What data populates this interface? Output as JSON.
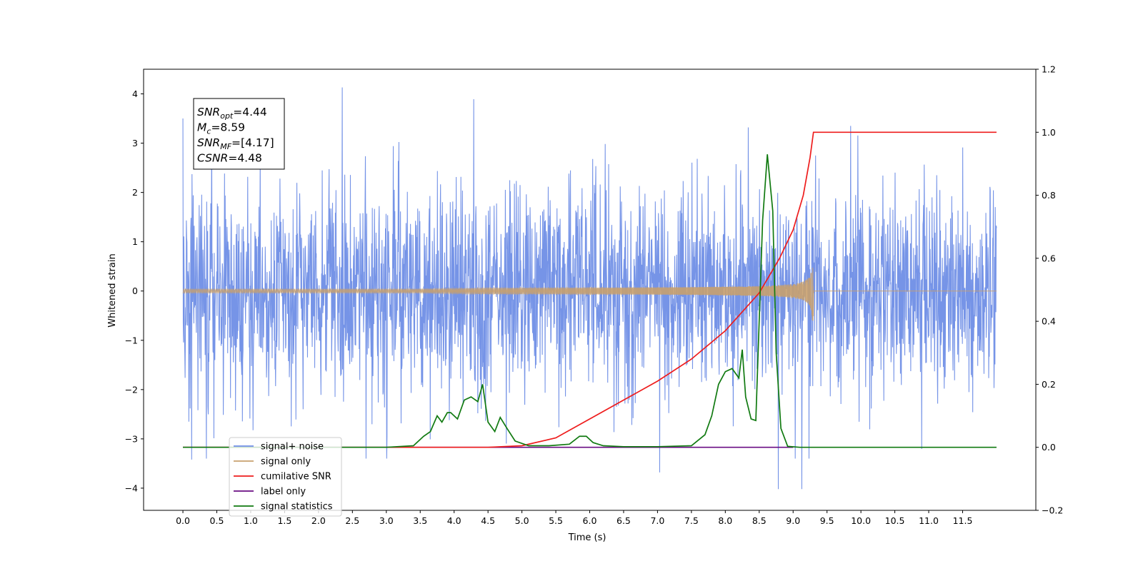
{
  "chart_data": {
    "type": "line",
    "title": "",
    "xlabel": "Time (s)",
    "ylabel": "Whitened strain",
    "y2label": "",
    "xlim": [
      -0.58,
      12.58
    ],
    "ylim": [
      -4.45,
      4.5
    ],
    "y2lim": [
      -0.2,
      1.2
    ],
    "xticks": [
      0.0,
      0.5,
      1.0,
      1.5,
      2.0,
      2.5,
      3.0,
      3.5,
      4.0,
      4.5,
      5.0,
      5.5,
      6.0,
      6.5,
      7.0,
      7.5,
      8.0,
      8.5,
      9.0,
      9.5,
      10.0,
      10.5,
      11.0,
      11.5
    ],
    "xtick_labels": [
      "0.0",
      "0.5",
      "1.0",
      "1.5",
      "2.0",
      "2.5",
      "3.0",
      "3.5",
      "4.0",
      "4.5",
      "5.0",
      "5.5",
      "6.0",
      "6.5",
      "7.0",
      "7.5",
      "8.0",
      "8.5",
      "9.0",
      "9.5",
      "10.0",
      "10.5",
      "11.0",
      "11.5"
    ],
    "yticks": [
      -4,
      -3,
      -2,
      -1,
      0,
      1,
      2,
      3,
      4
    ],
    "ytick_labels": [
      "−4",
      "−3",
      "−2",
      "−1",
      "0",
      "1",
      "2",
      "3",
      "4"
    ],
    "y2ticks": [
      -0.2,
      0.0,
      0.2,
      0.4,
      0.6,
      0.8,
      1.0,
      1.2
    ],
    "y2tick_labels": [
      "−0.2",
      "0.0",
      "0.2",
      "0.4",
      "0.6",
      "0.8",
      "1.0",
      "1.2"
    ],
    "grid": false,
    "legend_position": "lower-left",
    "annotation": {
      "lines": [
        {
          "sym": "SNR",
          "sub": "opt",
          "val": "=4.44"
        },
        {
          "sym": "M",
          "sub": "c",
          "val": "=8.59"
        },
        {
          "sym": "SNR",
          "sub": "MF",
          "val": "=[4.17]"
        },
        {
          "sym": "CSNR",
          "sub": "",
          "val": "=4.48"
        }
      ]
    },
    "series": [
      {
        "name": "signal+ noise",
        "color": "#6f8ee6",
        "axis": "left",
        "kind": "noise",
        "x_range": [
          0.0,
          12.0
        ],
        "envelope": [
          -3.4,
          4.13
        ],
        "note_points": [
          [
            0.0,
            3.5
          ],
          [
            0.13,
            -3.42
          ],
          [
            2.35,
            4.13
          ],
          [
            2.7,
            -3.4
          ],
          [
            8.78,
            -4.02
          ],
          [
            9.13,
            -4.02
          ],
          [
            9.85,
            3.35
          ],
          [
            7.03,
            -3.68
          ]
        ]
      },
      {
        "name": "signal only",
        "color": "#c8a06e",
        "axis": "left",
        "kind": "chirp",
        "x_range": [
          0.0,
          12.0
        ],
        "merger_time": 9.3,
        "peak_amplitude": 0.75
      },
      {
        "name": "cumilative SNR",
        "color": "#ee1c1c",
        "axis": "right",
        "x": [
          0.0,
          4.0,
          4.5,
          5.0,
          5.5,
          6.0,
          6.5,
          7.0,
          7.5,
          8.0,
          8.5,
          8.8,
          9.0,
          9.15,
          9.25,
          9.3,
          12.0
        ],
        "values": [
          0.0,
          0.0,
          0.0,
          0.005,
          0.03,
          0.09,
          0.15,
          0.21,
          0.28,
          0.37,
          0.49,
          0.6,
          0.69,
          0.8,
          0.92,
          1.0,
          1.0
        ]
      },
      {
        "name": "label only",
        "color": "#6a0d83",
        "axis": "right",
        "x": [
          0.0,
          9.0
        ],
        "values": [
          0.0,
          0.0
        ]
      },
      {
        "name": "signal statistics",
        "color": "#117a11",
        "axis": "right",
        "x": [
          0.0,
          3.0,
          3.4,
          3.55,
          3.65,
          3.75,
          3.82,
          3.9,
          3.95,
          4.05,
          4.15,
          4.25,
          4.35,
          4.42,
          4.5,
          4.6,
          4.68,
          4.78,
          4.9,
          5.1,
          5.4,
          5.7,
          5.85,
          5.95,
          6.05,
          6.2,
          6.5,
          7.0,
          7.5,
          7.7,
          7.8,
          7.9,
          8.0,
          8.1,
          8.2,
          8.25,
          8.3,
          8.38,
          8.45,
          8.55,
          8.62,
          8.7,
          8.75,
          8.82,
          8.92,
          9.1,
          12.0
        ],
        "values": [
          0.0,
          0.0,
          0.005,
          0.035,
          0.05,
          0.1,
          0.08,
          0.11,
          0.11,
          0.09,
          0.15,
          0.16,
          0.145,
          0.2,
          0.08,
          0.05,
          0.095,
          0.06,
          0.02,
          0.005,
          0.005,
          0.01,
          0.035,
          0.035,
          0.015,
          0.005,
          0.002,
          0.002,
          0.005,
          0.04,
          0.1,
          0.2,
          0.24,
          0.25,
          0.22,
          0.31,
          0.16,
          0.09,
          0.085,
          0.72,
          0.93,
          0.75,
          0.3,
          0.06,
          0.003,
          0.0,
          0.0
        ]
      }
    ]
  }
}
